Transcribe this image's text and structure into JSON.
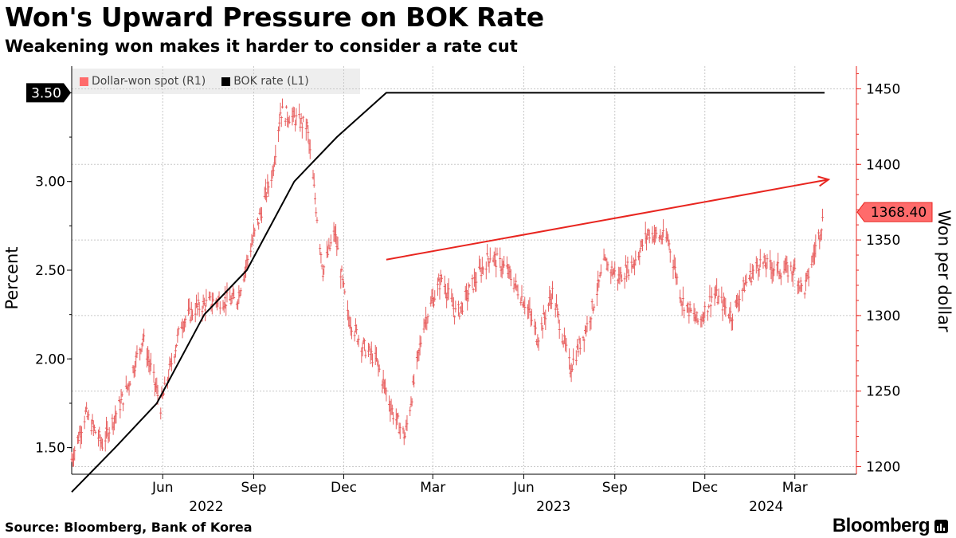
{
  "title": "Won's Upward Pressure on BOK Rate",
  "subtitle": "Weakening won makes it harder to consider a rate cut",
  "source": "Source: Bloomberg, Bank of Korea",
  "brand": "Bloomberg",
  "chart_data": {
    "type": "line",
    "legend": [
      {
        "name": "Dollar-won spot (R1)",
        "color": "#ff6b6b"
      },
      {
        "name": "BOK rate (L1)",
        "color": "#000000"
      }
    ],
    "ylabel_left": "Percent",
    "ylabel_right": "Won per dollar",
    "ylim_left": [
      1.35,
      3.65
    ],
    "ylim_right": [
      1195,
      1465
    ],
    "yticks_left": [
      "1.50",
      "2.00",
      "2.50",
      "3.00"
    ],
    "yticks_right": [
      "1200",
      "1250",
      "1300",
      "1350",
      "1400",
      "1450"
    ],
    "x_ticks": [
      "Jun",
      "Sep",
      "Dec",
      "Mar",
      "Jun",
      "Sep",
      "Dec",
      "Mar"
    ],
    "x_years": [
      "2022",
      "2023",
      "2024"
    ],
    "x_range": [
      "2022-03-01",
      "2024-03-31"
    ],
    "last_left_label": "3.50",
    "last_right_label": "1368.40",
    "series": [
      {
        "name": "BOK rate (L1)",
        "axis": "left",
        "points": [
          [
            "2022-03-01",
            1.25
          ],
          [
            "2022-04-14",
            1.5
          ],
          [
            "2022-05-26",
            1.75
          ],
          [
            "2022-07-13",
            2.25
          ],
          [
            "2022-08-25",
            2.5
          ],
          [
            "2022-10-12",
            3.0
          ],
          [
            "2022-11-24",
            3.25
          ],
          [
            "2023-01-13",
            3.5
          ],
          [
            "2024-03-31",
            3.5
          ]
        ]
      },
      {
        "name": "Dollar-won spot (R1)",
        "axis": "right",
        "points": [
          [
            "2022-03-01",
            1205
          ],
          [
            "2022-03-15",
            1235
          ],
          [
            "2022-04-01",
            1215
          ],
          [
            "2022-04-25",
            1250
          ],
          [
            "2022-05-12",
            1285
          ],
          [
            "2022-05-30",
            1240
          ],
          [
            "2022-06-20",
            1295
          ],
          [
            "2022-07-05",
            1305
          ],
          [
            "2022-07-25",
            1310
          ],
          [
            "2022-08-15",
            1310
          ],
          [
            "2022-08-29",
            1345
          ],
          [
            "2022-09-20",
            1395
          ],
          [
            "2022-09-28",
            1435
          ],
          [
            "2022-10-13",
            1430
          ],
          [
            "2022-10-25",
            1425
          ],
          [
            "2022-11-10",
            1330
          ],
          [
            "2022-11-22",
            1355
          ],
          [
            "2022-12-05",
            1300
          ],
          [
            "2022-12-20",
            1280
          ],
          [
            "2023-01-03",
            1270
          ],
          [
            "2023-01-20",
            1235
          ],
          [
            "2023-02-01",
            1220
          ],
          [
            "2023-02-20",
            1295
          ],
          [
            "2023-03-10",
            1325
          ],
          [
            "2023-03-25",
            1300
          ],
          [
            "2023-04-10",
            1320
          ],
          [
            "2023-04-28",
            1340
          ],
          [
            "2023-05-15",
            1330
          ],
          [
            "2023-06-05",
            1305
          ],
          [
            "2023-06-15",
            1285
          ],
          [
            "2023-06-30",
            1315
          ],
          [
            "2023-07-18",
            1265
          ],
          [
            "2023-08-05",
            1295
          ],
          [
            "2023-08-22",
            1335
          ],
          [
            "2023-09-05",
            1325
          ],
          [
            "2023-09-20",
            1335
          ],
          [
            "2023-10-05",
            1355
          ],
          [
            "2023-10-25",
            1350
          ],
          [
            "2023-11-08",
            1310
          ],
          [
            "2023-11-25",
            1295
          ],
          [
            "2023-12-10",
            1315
          ],
          [
            "2023-12-28",
            1300
          ],
          [
            "2024-01-10",
            1320
          ],
          [
            "2024-01-25",
            1335
          ],
          [
            "2024-02-15",
            1330
          ],
          [
            "2024-03-01",
            1330
          ],
          [
            "2024-03-10",
            1315
          ],
          [
            "2024-03-20",
            1340
          ],
          [
            "2024-03-31",
            1368
          ]
        ]
      }
    ],
    "annotations": [
      {
        "type": "arrow",
        "axis": "right",
        "from": [
          "2023-01-13",
          1337
        ],
        "to": [
          "2024-04-04",
          1390
        ],
        "color": "#e8251f"
      }
    ]
  }
}
